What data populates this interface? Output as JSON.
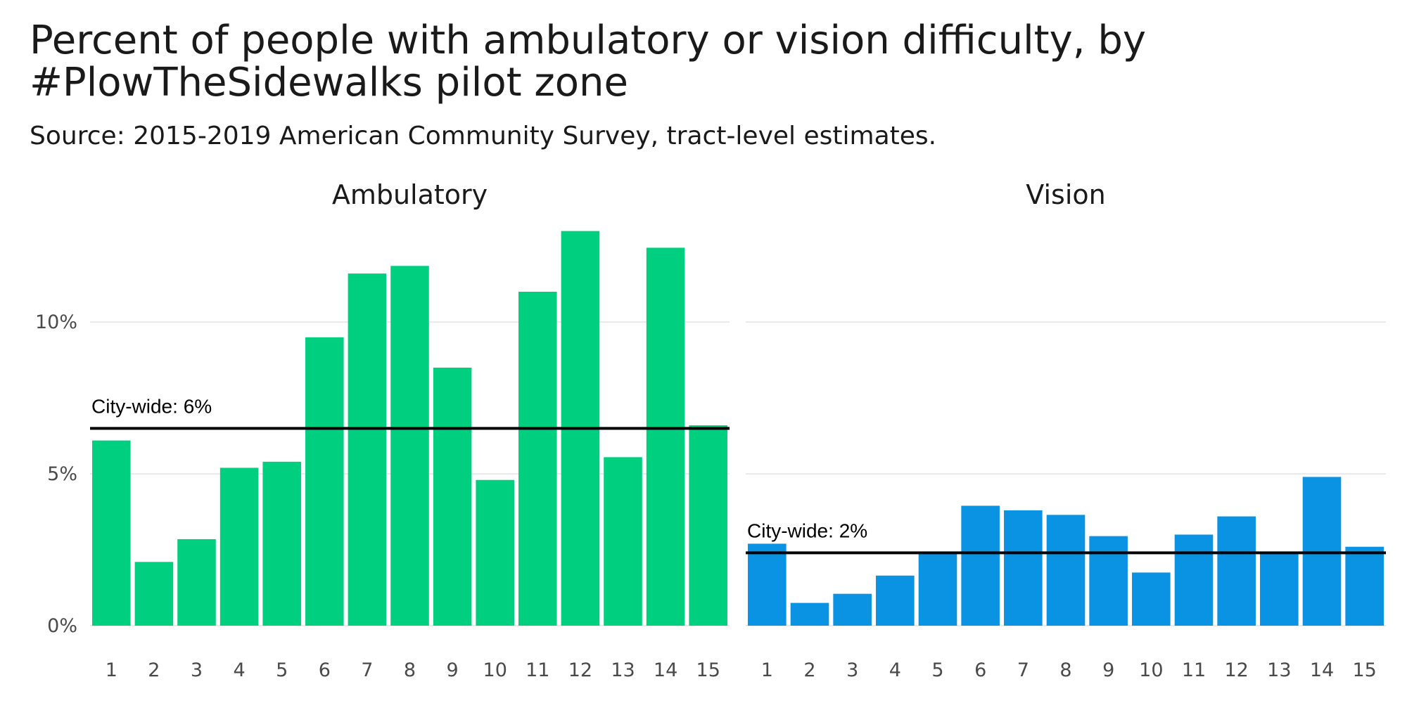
{
  "title": "Percent of people with ambulatory or vision difficulty, by #PlowTheSidewalks pilot zone",
  "subtitle": "Source: 2015-2019 American Community Survey, tract-level estimates.",
  "chart_data": [
    {
      "type": "bar",
      "title": "Ambulatory",
      "xlabel": "",
      "ylabel": "",
      "categories": [
        "1",
        "2",
        "3",
        "4",
        "5",
        "6",
        "7",
        "8",
        "9",
        "10",
        "11",
        "12",
        "13",
        "14",
        "15"
      ],
      "values": [
        6.1,
        2.1,
        2.85,
        5.2,
        5.4,
        9.5,
        11.6,
        11.85,
        8.5,
        4.8,
        11.0,
        13.0,
        5.55,
        12.45,
        6.6
      ],
      "ylim": [
        0,
        13.2
      ],
      "yticks": [
        0,
        5,
        10
      ],
      "ytick_labels": [
        "0%",
        "5%",
        "10%"
      ],
      "reference_line": {
        "value": 6.5,
        "label": "City-wide: 6%"
      },
      "color": "#00cf80",
      "grid": true
    },
    {
      "type": "bar",
      "title": "Vision",
      "xlabel": "",
      "ylabel": "",
      "categories": [
        "1",
        "2",
        "3",
        "4",
        "5",
        "6",
        "7",
        "8",
        "9",
        "10",
        "11",
        "12",
        "13",
        "14",
        "15"
      ],
      "values": [
        2.7,
        0.75,
        1.05,
        1.65,
        2.4,
        3.95,
        3.8,
        3.65,
        2.95,
        1.75,
        3.0,
        3.6,
        2.4,
        4.9,
        2.6
      ],
      "ylim": [
        0,
        13.2
      ],
      "yticks": [
        0,
        5,
        10
      ],
      "ytick_labels": [
        "0%",
        "5%",
        "10%"
      ],
      "reference_line": {
        "value": 2.4,
        "label": "City-wide: 2%"
      },
      "color": "#0a93e3",
      "grid": true
    }
  ]
}
